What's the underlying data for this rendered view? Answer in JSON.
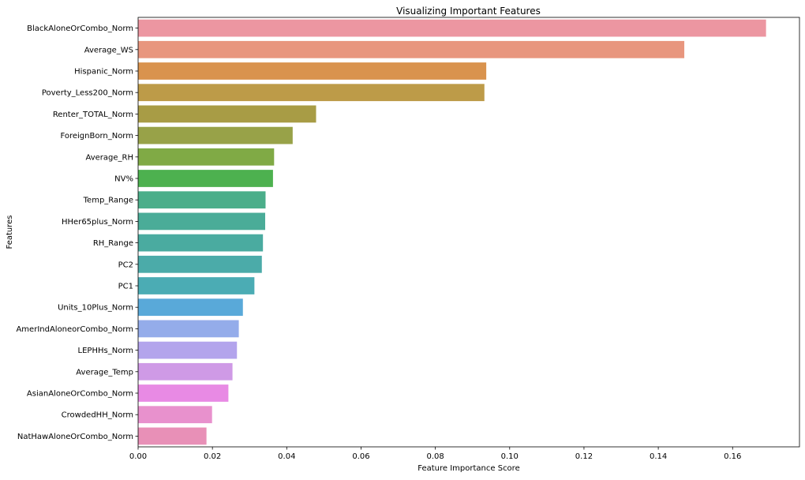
{
  "chart_data": {
    "type": "bar",
    "orientation": "horizontal",
    "title": "Visualizing Important Features",
    "xlabel": "Feature Importance Score",
    "ylabel": "Features",
    "xlim": [
      0,
      0.178
    ],
    "x_ticks": [
      0.0,
      0.02,
      0.04,
      0.06,
      0.08,
      0.1,
      0.12,
      0.14,
      0.16
    ],
    "x_tick_labels": [
      "0.00",
      "0.02",
      "0.04",
      "0.06",
      "0.08",
      "0.10",
      "0.12",
      "0.14",
      "0.16"
    ],
    "grid": false,
    "legend": "none",
    "categories": [
      "BlackAloneOrCombo_Norm",
      "Average_WS",
      "Hispanic_Norm",
      "Poverty_Less200_Norm",
      "Renter_TOTAL_Norm",
      "ForeignBorn_Norm",
      "Average_RH",
      "NV%",
      "Temp_Range",
      "HHer65plus_Norm",
      "RH_Range",
      "PC2",
      "PC1",
      "Units_10Plus_Norm",
      "AmerIndAloneorCombo_Norm",
      "LEPHHs_Norm",
      "Average_Temp",
      "AsianAloneOrCombo_Norm",
      "CrowdedHH_Norm",
      "NatHawAloneOrCombo_Norm"
    ],
    "values": [
      0.169,
      0.147,
      0.0937,
      0.0932,
      0.0479,
      0.0416,
      0.0366,
      0.0363,
      0.0343,
      0.0342,
      0.0336,
      0.0333,
      0.0313,
      0.0282,
      0.0271,
      0.0266,
      0.0254,
      0.0243,
      0.0199,
      0.0184
    ],
    "colors": [
      "#ec96a1",
      "#e8967e",
      "#d9934e",
      "#bd9b48",
      "#a89c45",
      "#98a248",
      "#80aa45",
      "#4db14f",
      "#4bae8a",
      "#4aac98",
      "#4aaba0",
      "#4baba9",
      "#4bacb4",
      "#59a9d9",
      "#94acea",
      "#b3a4ec",
      "#cf9ae6",
      "#e88ae4",
      "#e891cd",
      "#e890b7"
    ]
  }
}
